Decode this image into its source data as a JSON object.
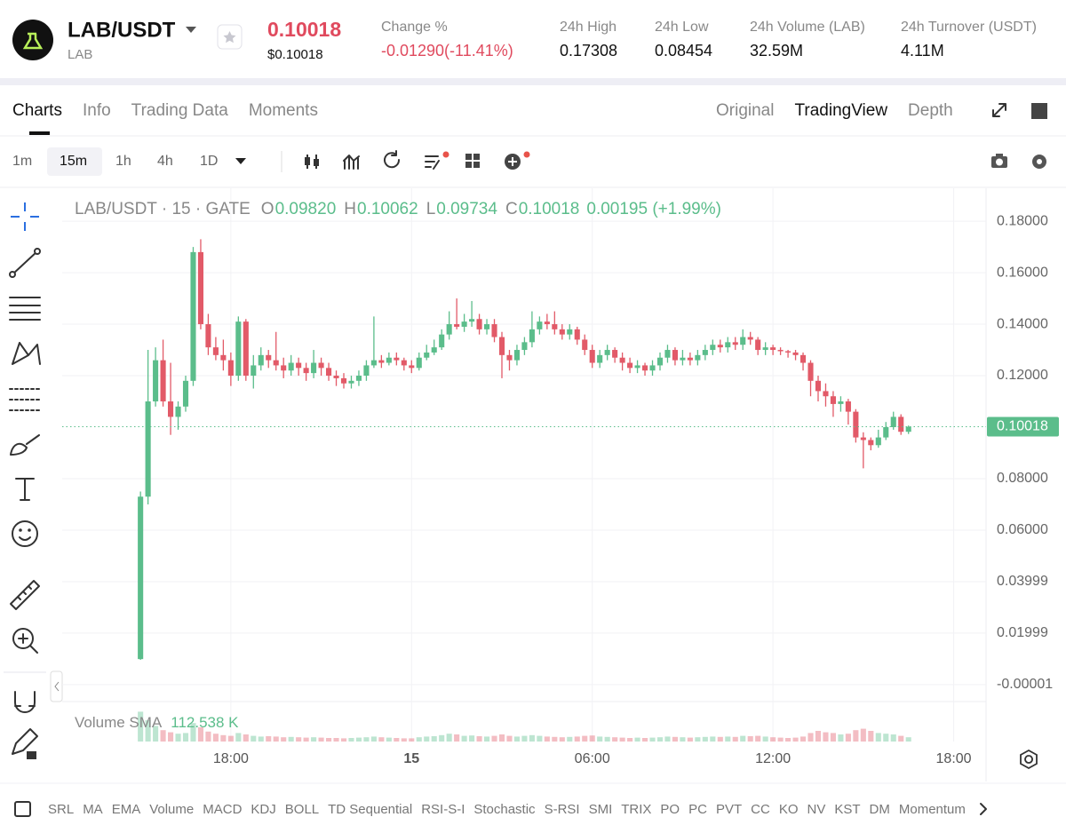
{
  "header": {
    "pair": "LAB/USDT",
    "base": "LAB",
    "price": "0.10018",
    "price_usd": "$0.10018",
    "change_label": "Change %",
    "change": "-0.01290(-11.41%)",
    "stats": [
      {
        "label": "24h High",
        "value": "0.17308"
      },
      {
        "label": "24h Low",
        "value": "0.08454"
      },
      {
        "label": "24h Volume (LAB)",
        "value": "32.59M"
      },
      {
        "label": "24h Turnover (USDT)",
        "value": "4.11M"
      }
    ]
  },
  "tabs": [
    "Charts",
    "Info",
    "Trading Data",
    "Moments"
  ],
  "views": [
    "Original",
    "TradingView",
    "Depth"
  ],
  "intervals": [
    "1m",
    "15m",
    "1h",
    "4h",
    "1D"
  ],
  "chart_data": {
    "type": "candlestick",
    "symbol": "LAB/USDT · 15 · GATE",
    "ohlc_legend": [
      {
        "key": "O",
        "value": "0.09820"
      },
      {
        "key": "H",
        "value": "0.10062"
      },
      {
        "key": "L",
        "value": "0.09734"
      },
      {
        "key": "C",
        "value": "0.10018"
      }
    ],
    "change": "0.00195 (+1.99%)",
    "last_price": 0.10018,
    "ylim": [
      -0.0066,
      0.1928
    ],
    "yticks": [
      {
        "value": 0.18,
        "label": "0.18000"
      },
      {
        "value": 0.16,
        "label": "0.16000"
      },
      {
        "value": 0.14,
        "label": "0.14000"
      },
      {
        "value": 0.12,
        "label": "0.12000"
      },
      {
        "value": 0.08,
        "label": "0.08000"
      },
      {
        "value": 0.06,
        "label": "0.06000"
      },
      0.03999,
      0.01999,
      -1e-05
    ],
    "xlim": [
      -10.4,
      112.3
    ],
    "xticks": [
      {
        "value": 12,
        "label": "18:00"
      },
      {
        "value": 36,
        "label": "15"
      },
      {
        "value": 60,
        "label": "06:00"
      },
      {
        "value": 84,
        "label": "12:00"
      },
      {
        "value": 108,
        "label": "18:00"
      }
    ],
    "grid": true,
    "up_color": "#5bbd8b",
    "down_color": "#e25a68",
    "candles": [
      [
        0.0099,
        0.075,
        0.0096,
        0.073
      ],
      [
        0.073,
        0.13,
        0.07,
        0.11
      ],
      [
        0.11,
        0.131,
        0.108,
        0.126
      ],
      [
        0.126,
        0.134,
        0.108,
        0.11
      ],
      [
        0.11,
        0.125,
        0.097,
        0.104
      ],
      [
        0.104,
        0.11,
        0.099,
        0.108
      ],
      [
        0.108,
        0.12,
        0.106,
        0.118
      ],
      [
        0.118,
        0.17,
        0.116,
        0.168
      ],
      [
        0.168,
        0.173,
        0.138,
        0.14
      ],
      [
        0.14,
        0.144,
        0.128,
        0.131
      ],
      [
        0.131,
        0.135,
        0.126,
        0.128
      ],
      [
        0.128,
        0.134,
        0.122,
        0.126
      ],
      [
        0.126,
        0.129,
        0.116,
        0.12
      ],
      [
        0.12,
        0.143,
        0.118,
        0.141
      ],
      [
        0.141,
        0.142,
        0.118,
        0.12
      ],
      [
        0.12,
        0.128,
        0.115,
        0.124
      ],
      [
        0.124,
        0.131,
        0.122,
        0.128
      ],
      [
        0.128,
        0.13,
        0.123,
        0.126
      ],
      [
        0.126,
        0.137,
        0.122,
        0.124
      ],
      [
        0.124,
        0.127,
        0.119,
        0.122
      ],
      [
        0.122,
        0.128,
        0.12,
        0.125
      ],
      [
        0.125,
        0.127,
        0.12,
        0.123
      ],
      [
        0.123,
        0.125,
        0.118,
        0.121
      ],
      [
        0.121,
        0.13,
        0.119,
        0.125
      ],
      [
        0.125,
        0.127,
        0.12,
        0.123
      ],
      [
        0.123,
        0.125,
        0.118,
        0.12
      ],
      [
        0.12,
        0.122,
        0.116,
        0.119
      ],
      [
        0.119,
        0.121,
        0.115,
        0.117
      ],
      [
        0.117,
        0.12,
        0.115,
        0.118
      ],
      [
        0.118,
        0.122,
        0.116,
        0.12
      ],
      [
        0.12,
        0.126,
        0.118,
        0.124
      ],
      [
        0.124,
        0.143,
        0.123,
        0.126
      ],
      [
        0.126,
        0.128,
        0.123,
        0.125
      ],
      [
        0.125,
        0.129,
        0.124,
        0.127
      ],
      [
        0.127,
        0.129,
        0.124,
        0.126
      ],
      [
        0.126,
        0.127,
        0.122,
        0.124
      ],
      [
        0.124,
        0.126,
        0.121,
        0.123
      ],
      [
        0.123,
        0.129,
        0.122,
        0.127
      ],
      [
        0.127,
        0.132,
        0.126,
        0.129
      ],
      [
        0.129,
        0.134,
        0.128,
        0.131
      ],
      [
        0.131,
        0.138,
        0.13,
        0.136
      ],
      [
        0.136,
        0.145,
        0.134,
        0.14
      ],
      [
        0.14,
        0.15,
        0.138,
        0.139
      ],
      [
        0.139,
        0.144,
        0.137,
        0.141
      ],
      [
        0.141,
        0.149,
        0.139,
        0.142
      ],
      [
        0.142,
        0.144,
        0.136,
        0.138
      ],
      [
        0.138,
        0.142,
        0.136,
        0.14
      ],
      [
        0.14,
        0.142,
        0.133,
        0.135
      ],
      [
        0.135,
        0.137,
        0.119,
        0.128
      ],
      [
        0.128,
        0.13,
        0.122,
        0.126
      ],
      [
        0.126,
        0.132,
        0.124,
        0.13
      ],
      [
        0.13,
        0.135,
        0.128,
        0.133
      ],
      [
        0.133,
        0.145,
        0.131,
        0.138
      ],
      [
        0.138,
        0.143,
        0.136,
        0.141
      ],
      [
        0.141,
        0.144,
        0.138,
        0.14
      ],
      [
        0.14,
        0.145,
        0.136,
        0.138
      ],
      [
        0.138,
        0.14,
        0.134,
        0.136
      ],
      [
        0.136,
        0.14,
        0.134,
        0.138
      ],
      [
        0.138,
        0.139,
        0.132,
        0.134
      ],
      [
        0.134,
        0.136,
        0.128,
        0.13
      ],
      [
        0.13,
        0.132,
        0.123,
        0.125
      ],
      [
        0.125,
        0.13,
        0.123,
        0.128
      ],
      [
        0.128,
        0.132,
        0.126,
        0.13
      ],
      [
        0.13,
        0.131,
        0.125,
        0.127
      ],
      [
        0.127,
        0.129,
        0.122,
        0.125
      ],
      [
        0.125,
        0.127,
        0.121,
        0.123
      ],
      [
        0.123,
        0.126,
        0.121,
        0.124
      ],
      [
        0.124,
        0.125,
        0.12,
        0.122
      ],
      [
        0.122,
        0.126,
        0.12,
        0.124
      ],
      [
        0.124,
        0.129,
        0.122,
        0.127
      ],
      [
        0.127,
        0.132,
        0.125,
        0.13
      ],
      [
        0.13,
        0.131,
        0.124,
        0.126
      ],
      [
        0.126,
        0.13,
        0.124,
        0.127
      ],
      [
        0.127,
        0.129,
        0.124,
        0.126
      ],
      [
        0.126,
        0.13,
        0.124,
        0.128
      ],
      [
        0.128,
        0.132,
        0.126,
        0.13
      ],
      [
        0.13,
        0.134,
        0.128,
        0.132
      ],
      [
        0.132,
        0.134,
        0.129,
        0.131
      ],
      [
        0.131,
        0.135,
        0.129,
        0.133
      ],
      [
        0.133,
        0.135,
        0.13,
        0.132
      ],
      [
        0.132,
        0.138,
        0.13,
        0.135
      ],
      [
        0.135,
        0.137,
        0.132,
        0.134
      ],
      [
        0.134,
        0.135,
        0.128,
        0.13
      ],
      [
        0.13,
        0.133,
        0.128,
        0.131
      ],
      [
        0.131,
        0.132,
        0.128,
        0.13
      ],
      [
        0.13,
        0.131,
        0.128,
        0.1295
      ],
      [
        0.1295,
        0.13,
        0.127,
        0.129
      ],
      [
        0.129,
        0.13,
        0.126,
        0.128
      ],
      [
        0.128,
        0.129,
        0.122,
        0.125
      ],
      [
        0.125,
        0.126,
        0.112,
        0.118
      ],
      [
        0.118,
        0.12,
        0.11,
        0.114
      ],
      [
        0.114,
        0.117,
        0.108,
        0.112
      ],
      [
        0.112,
        0.114,
        0.104,
        0.109
      ],
      [
        0.109,
        0.112,
        0.106,
        0.11
      ],
      [
        0.11,
        0.111,
        0.101,
        0.106
      ],
      [
        0.106,
        0.107,
        0.094,
        0.096
      ],
      [
        0.096,
        0.098,
        0.084,
        0.095
      ],
      [
        0.095,
        0.096,
        0.091,
        0.093
      ],
      [
        0.093,
        0.099,
        0.092,
        0.096
      ],
      [
        0.096,
        0.102,
        0.095,
        0.1
      ],
      [
        0.1,
        0.106,
        0.099,
        0.104
      ],
      [
        0.104,
        0.105,
        0.097,
        0.0982
      ],
      [
        0.0982,
        0.10062,
        0.09734,
        0.10018
      ]
    ],
    "volume_label": "Volume SMA",
    "volume_sma": "112.538 K",
    "volume": [
      420,
      300,
      220,
      160,
      130,
      110,
      120,
      260,
      200,
      140,
      110,
      90,
      80,
      120,
      100,
      80,
      70,
      75,
      70,
      60,
      65,
      60,
      55,
      60,
      55,
      50,
      50,
      45,
      50,
      55,
      60,
      70,
      60,
      55,
      50,
      45,
      45,
      60,
      70,
      75,
      90,
      110,
      100,
      80,
      85,
      75,
      70,
      80,
      100,
      80,
      70,
      80,
      90,
      80,
      70,
      65,
      60,
      65,
      70,
      80,
      85,
      70,
      65,
      60,
      55,
      50,
      55,
      50,
      55,
      60,
      70,
      65,
      60,
      55,
      60,
      65,
      70,
      65,
      70,
      65,
      80,
      75,
      80,
      70,
      60,
      55,
      50,
      55,
      70,
      120,
      150,
      130,
      120,
      100,
      110,
      160,
      180,
      150,
      120,
      110,
      100,
      80,
      60
    ],
    "volume_lim": [
      0,
      500
    ]
  },
  "indicators": [
    "SRL",
    "MA",
    "EMA",
    "Volume",
    "MACD",
    "KDJ",
    "BOLL",
    "TD Sequential",
    "RSI-S-I",
    "Stochastic",
    "S-RSI",
    "SMI",
    "TRIX",
    "PO",
    "PC",
    "PVT",
    "CC",
    "KO",
    "NV",
    "KST",
    "DM",
    "Momentum"
  ]
}
